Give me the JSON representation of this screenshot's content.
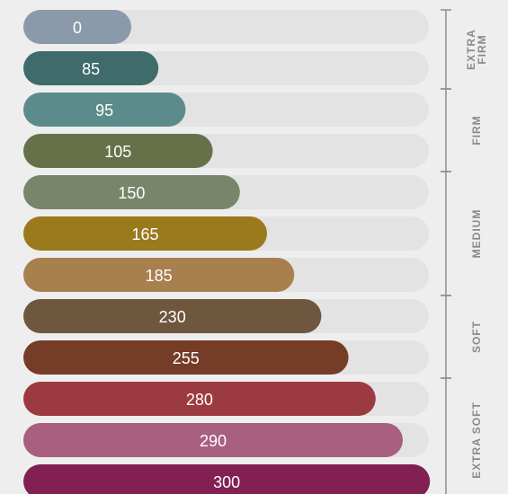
{
  "chart_data": {
    "type": "bar",
    "orientation": "horizontal",
    "categories": [
      "0",
      "85",
      "95",
      "105",
      "150",
      "165",
      "185",
      "230",
      "255",
      "280",
      "290",
      "300"
    ],
    "values": [
      0,
      85,
      95,
      105,
      150,
      165,
      185,
      230,
      255,
      280,
      290,
      300
    ],
    "labels": [
      "0",
      "85",
      "95",
      "105",
      "150",
      "165",
      "185",
      "230",
      "255",
      "280",
      "290",
      "300"
    ],
    "colors": [
      "#8b9aaa",
      "#3f6b6b",
      "#5c8b8b",
      "#66714a",
      "#79856a",
      "#9a7a1c",
      "#a8804e",
      "#6f563e",
      "#753c27",
      "#9c3a41",
      "#a85f80",
      "#822053"
    ],
    "title": "",
    "xlabel": "",
    "ylabel": "",
    "groups": [
      {
        "label": "EXTRA FIRM",
        "lines": [
          "EXTRA",
          "FIRM"
        ],
        "start": 0,
        "end": 1
      },
      {
        "label": "FIRM",
        "lines": [
          "FIRM"
        ],
        "start": 2,
        "end": 3
      },
      {
        "label": "MEDIUM",
        "lines": [
          "MEDIUM"
        ],
        "start": 4,
        "end": 6
      },
      {
        "label": "SOFT",
        "lines": [
          "SOFT"
        ],
        "start": 7,
        "end": 8
      },
      {
        "label": "EXTRA SOFT",
        "lines": [
          "EXTRA SOFT"
        ],
        "start": 9,
        "end": 11
      }
    ]
  }
}
